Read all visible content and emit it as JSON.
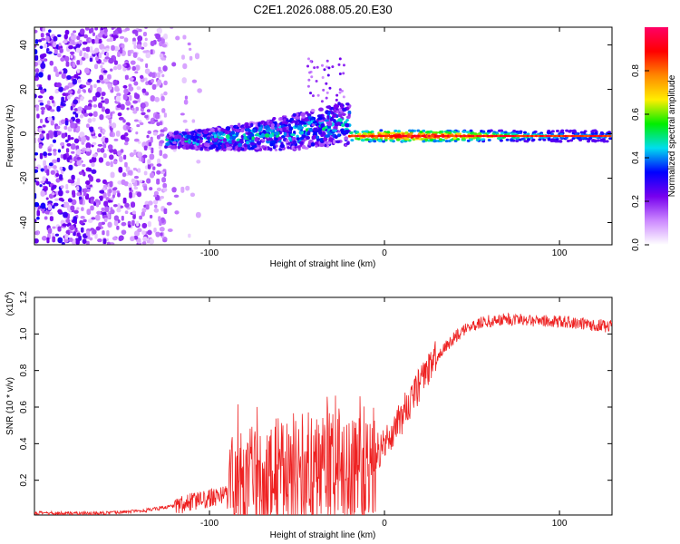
{
  "figure_title": "C2E1.2026.088.05.20.E30",
  "chart_data": [
    {
      "type": "heatmap",
      "title": "C2E1.2026.088.05.20.E30",
      "xlabel": "Height of straight line (km)",
      "ylabel": "Frequency (Hz)",
      "xlim": [
        -200,
        130
      ],
      "ylim": [
        -50,
        48
      ],
      "xticks": [
        -100,
        0,
        100
      ],
      "yticks": [
        -40,
        -20,
        0,
        20,
        40
      ],
      "colorbar": {
        "label": "Normalized spectral amplitude",
        "range": [
          0.0,
          1.0
        ],
        "ticks": [
          0.0,
          0.2,
          0.4,
          0.6,
          0.8
        ],
        "colors": [
          "#ffffff",
          "#cc88ff",
          "#7700ee",
          "#0000ff",
          "#00ddee",
          "#00ee00",
          "#ffee00",
          "#ff8800",
          "#ff0000",
          "#ff0066"
        ]
      },
      "regions": [
        {
          "name": "noise",
          "x": [
            -200,
            -125
          ],
          "freq_range": [
            -50,
            48
          ],
          "amplitude": 0.15
        },
        {
          "name": "transition",
          "x": [
            -125,
            -20
          ],
          "freq_center_start": -3,
          "freq_center_end": 5,
          "amplitude": 0.35
        },
        {
          "name": "stable_line",
          "x": [
            -20,
            130
          ],
          "freq_center": -1,
          "amplitude": 0.95
        }
      ]
    },
    {
      "type": "line",
      "xlabel": "Height of straight line (km)",
      "ylabel": "SNR (10 * v/v)",
      "multiplier_label": "(x10",
      "multiplier_exp": "4",
      "xlim": [
        -200,
        130
      ],
      "ylim": [
        0.01,
        1.2
      ],
      "xticks": [
        -100,
        0,
        100
      ],
      "yticks": [
        0.2,
        0.4,
        0.6,
        0.8,
        1.0,
        1.2
      ],
      "color": "#ee2222",
      "series": [
        {
          "name": "SNR",
          "x": [
            -200,
            -160,
            -140,
            -120,
            -100,
            -80,
            -60,
            -45,
            -30,
            -20,
            -10,
            0,
            10,
            20,
            30,
            40,
            50,
            60,
            70,
            80,
            90,
            100,
            110,
            120,
            130
          ],
          "values": [
            0.02,
            0.02,
            0.03,
            0.06,
            0.1,
            0.16,
            0.22,
            0.26,
            0.27,
            0.28,
            0.3,
            0.4,
            0.55,
            0.72,
            0.88,
            0.98,
            1.05,
            1.07,
            1.08,
            1.08,
            1.07,
            1.07,
            1.06,
            1.05,
            1.04
          ]
        }
      ]
    }
  ]
}
